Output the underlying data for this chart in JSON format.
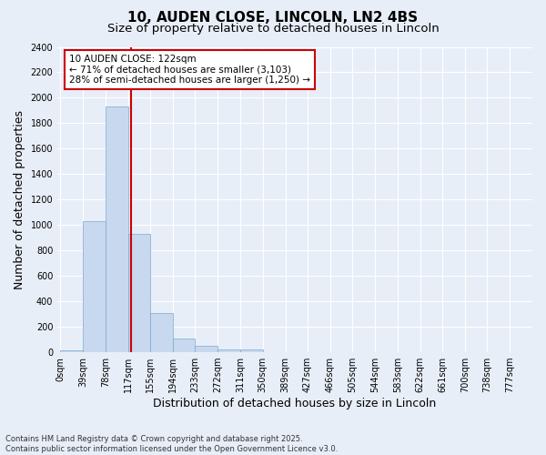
{
  "title1": "10, AUDEN CLOSE, LINCOLN, LN2 4BS",
  "title2": "Size of property relative to detached houses in Lincoln",
  "xlabel": "Distribution of detached houses by size in Lincoln",
  "ylabel": "Number of detached properties",
  "bar_color": "#c8d8ee",
  "bar_edge_color": "#7aaad0",
  "bar_left_edges": [
    0,
    39,
    78,
    117,
    155,
    194,
    233,
    272,
    311,
    350,
    389,
    427,
    466,
    505,
    544,
    583,
    622,
    661,
    700,
    738
  ],
  "bar_widths": [
    39,
    39,
    39,
    38,
    39,
    39,
    39,
    39,
    39,
    39,
    38,
    39,
    39,
    39,
    39,
    39,
    39,
    39,
    38,
    39
  ],
  "bar_heights": [
    15,
    1030,
    1930,
    930,
    310,
    110,
    48,
    25,
    20,
    0,
    0,
    0,
    0,
    0,
    0,
    0,
    0,
    0,
    0,
    0
  ],
  "tick_labels": [
    "0sqm",
    "39sqm",
    "78sqm",
    "117sqm",
    "155sqm",
    "194sqm",
    "233sqm",
    "272sqm",
    "311sqm",
    "350sqm",
    "389sqm",
    "427sqm",
    "466sqm",
    "505sqm",
    "544sqm",
    "583sqm",
    "622sqm",
    "661sqm",
    "700sqm",
    "738sqm",
    "777sqm"
  ],
  "tick_positions": [
    0,
    39,
    78,
    117,
    155,
    194,
    233,
    272,
    311,
    350,
    389,
    427,
    466,
    505,
    544,
    583,
    622,
    661,
    700,
    738,
    777
  ],
  "ylim": [
    0,
    2400
  ],
  "yticks": [
    0,
    200,
    400,
    600,
    800,
    1000,
    1200,
    1400,
    1600,
    1800,
    2000,
    2200,
    2400
  ],
  "red_line_x": 122,
  "annotation_title": "10 AUDEN CLOSE: 122sqm",
  "annotation_line1": "← 71% of detached houses are smaller (3,103)",
  "annotation_line2": "28% of semi-detached houses are larger (1,250) →",
  "annotation_box_color": "#ffffff",
  "annotation_box_edge_color": "#cc0000",
  "red_line_color": "#cc0000",
  "background_color": "#e8eef8",
  "plot_bg_color": "#e8eef8",
  "grid_color": "#ffffff",
  "footer_line1": "Contains HM Land Registry data © Crown copyright and database right 2025.",
  "footer_line2": "Contains public sector information licensed under the Open Government Licence v3.0.",
  "title_fontsize": 11,
  "subtitle_fontsize": 9.5,
  "axis_label_fontsize": 9,
  "tick_fontsize": 7,
  "annotation_fontsize": 7.5,
  "footer_fontsize": 6
}
